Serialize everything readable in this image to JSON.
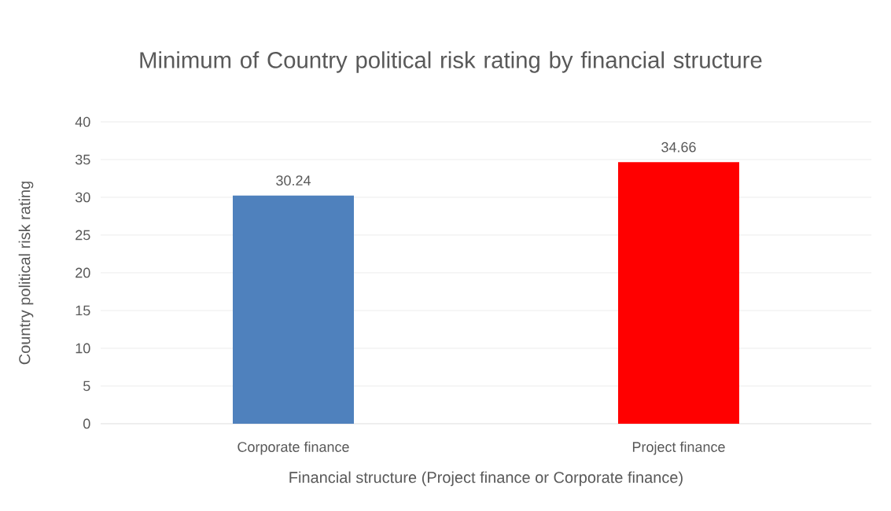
{
  "chart_data": {
    "type": "bar",
    "title": "Minimum of Country political risk rating by financial structure",
    "xlabel": "Financial structure (Project finance or Corporate finance)",
    "ylabel": "Country political risk rating",
    "categories": [
      "Corporate finance",
      "Project finance"
    ],
    "values": [
      30.24,
      34.66
    ],
    "colors": [
      "#4f81bd",
      "#ff0000"
    ],
    "value_labels": [
      "30.24",
      "34.66"
    ],
    "ylim": [
      0,
      40
    ],
    "yticks": [
      0,
      5,
      10,
      15,
      20,
      25,
      30,
      35,
      40
    ],
    "grid": "y"
  }
}
